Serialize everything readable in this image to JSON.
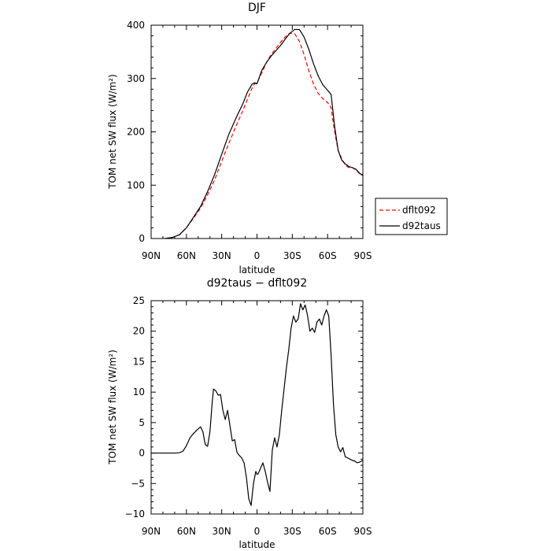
{
  "chart_data": [
    {
      "type": "line",
      "title": "DJF",
      "xlabel": "latitude",
      "ylabel": "TOM net SW flux (W/m²)",
      "xlim": [
        90,
        -90
      ],
      "ylim": [
        0,
        400
      ],
      "xticks": [
        90,
        60,
        30,
        0,
        -30,
        -60,
        -90
      ],
      "xtick_labels": [
        "90N",
        "60N",
        "30N",
        "0",
        "30S",
        "60S",
        "90S"
      ],
      "yticks": [
        0,
        100,
        200,
        300,
        400
      ],
      "ytick_labels": [
        "0",
        "100",
        "200",
        "300",
        "400"
      ],
      "grid": false,
      "legend": "right",
      "series": [
        {
          "name": "dflt092",
          "color": "#ff0000",
          "dash": true,
          "x": [
            78,
            72,
            66,
            60,
            54,
            48,
            42,
            36,
            30,
            24,
            18,
            12,
            8,
            4,
            2,
            0,
            -4,
            -8,
            -12,
            -16,
            -20,
            -24,
            -28,
            -32,
            -36,
            -40,
            -44,
            -48,
            -52,
            -56,
            -60,
            -63,
            -66,
            -69,
            -72,
            -75,
            -78,
            -81,
            -84,
            -87,
            -90
          ],
          "y": [
            0,
            2,
            7,
            20,
            38,
            57,
            82,
            110,
            145,
            178,
            210,
            240,
            262,
            283,
            290,
            292,
            310,
            330,
            345,
            356,
            368,
            378,
            385,
            384,
            370,
            345,
            315,
            290,
            272,
            262,
            255,
            245,
            200,
            165,
            150,
            138,
            133,
            133,
            129,
            122,
            118
          ]
        },
        {
          "name": "d92taus",
          "color": "#000000",
          "dash": false,
          "x": [
            78,
            72,
            66,
            60,
            54,
            48,
            42,
            36,
            30,
            24,
            18,
            12,
            8,
            4,
            2,
            0,
            -4,
            -8,
            -12,
            -16,
            -20,
            -24,
            -28,
            -32,
            -36,
            -40,
            -44,
            -48,
            -52,
            -56,
            -60,
            -63,
            -66,
            -69,
            -72,
            -75,
            -78,
            -81,
            -84,
            -87,
            -90
          ],
          "y": [
            0,
            2,
            7,
            20,
            40,
            60,
            88,
            120,
            158,
            195,
            225,
            253,
            275,
            290,
            292,
            290,
            315,
            330,
            342,
            352,
            362,
            374,
            385,
            392,
            392,
            378,
            355,
            328,
            305,
            288,
            278,
            270,
            210,
            165,
            147,
            140,
            135,
            133,
            130,
            123,
            118
          ]
        }
      ]
    },
    {
      "type": "line",
      "title": "d92taus − dflt092",
      "xlabel": "latitude",
      "ylabel": "TOM net SW flux (W/m²)",
      "xlim": [
        90,
        -90
      ],
      "ylim": [
        -10,
        25
      ],
      "xticks": [
        90,
        60,
        30,
        0,
        -30,
        -60,
        -90
      ],
      "xtick_labels": [
        "90N",
        "60N",
        "30N",
        "0",
        "30S",
        "60S",
        "90S"
      ],
      "yticks": [
        -10,
        -5,
        0,
        5,
        10,
        15,
        20,
        25
      ],
      "ytick_labels": [
        "−10",
        "−5",
        "0",
        "5",
        "10",
        "15",
        "20",
        "25"
      ],
      "grid": false,
      "series": [
        {
          "color": "#000000",
          "dash": false,
          "x": [
            90,
            80,
            70,
            66,
            63,
            60,
            57,
            54,
            51,
            48,
            46,
            44,
            42,
            40,
            38,
            37,
            35,
            33,
            31,
            29,
            27,
            25,
            23,
            21,
            19,
            17,
            15,
            13,
            11,
            9,
            7,
            5,
            3,
            1,
            0,
            -1,
            -3,
            -5,
            -7,
            -9,
            -11,
            -13,
            -15,
            -17,
            -19,
            -21,
            -23,
            -25,
            -27,
            -29,
            -31,
            -33,
            -35,
            -37,
            -39,
            -41,
            -43,
            -45,
            -47,
            -49,
            -51,
            -53,
            -55,
            -57,
            -59,
            -61,
            -63,
            -65,
            -67,
            -69,
            -71,
            -73,
            -75,
            -77,
            -79,
            -81,
            -83,
            -85,
            -87,
            -90
          ],
          "y": [
            0,
            0,
            0,
            0.05,
            0.3,
            1.2,
            2.5,
            3.2,
            3.8,
            4.3,
            3.5,
            1.4,
            1.1,
            3.5,
            8.5,
            10.5,
            10.2,
            9.5,
            9.6,
            7.0,
            5.5,
            7.0,
            4.5,
            2.0,
            2.2,
            0.1,
            -0.4,
            -0.8,
            -1.6,
            -4.0,
            -7.5,
            -8.6,
            -5.0,
            -3.0,
            -3.5,
            -3.4,
            -2.5,
            -1.6,
            -3.0,
            -4.8,
            -6.3,
            0.5,
            2.5,
            1.0,
            3.0,
            7.0,
            10.5,
            14.0,
            17.0,
            20.5,
            22.5,
            21.5,
            22.0,
            24.5,
            23.5,
            24.3,
            22.5,
            20.0,
            20.5,
            19.8,
            21.5,
            22.0,
            21.0,
            22.5,
            23.5,
            22.5,
            16.0,
            8.0,
            3.0,
            1.0,
            0.2,
            0.9,
            -0.6,
            -0.8,
            -1.0,
            -1.2,
            -1.3,
            -1.6,
            -1.5,
            -1.2
          ]
        }
      ]
    }
  ]
}
